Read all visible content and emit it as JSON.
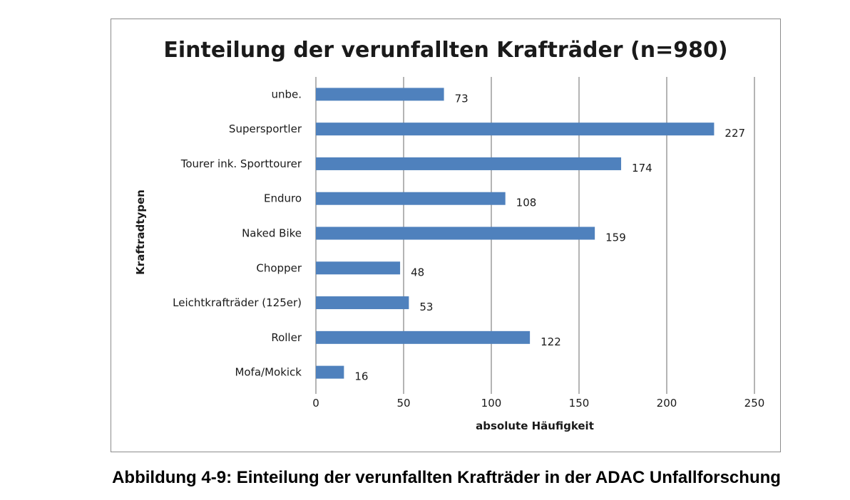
{
  "chart_data": {
    "type": "bar",
    "orientation": "horizontal",
    "title": "Einteilung der verunfallten Krafträder (n=980)",
    "xlabel": "absolute Häufigkeit",
    "ylabel": "Kraftradtypen",
    "categories": [
      "unbe.",
      "Supersportler",
      "Tourer ink. Sporttourer",
      "Enduro",
      "Naked Bike",
      "Chopper",
      "Leichtkrafträder (125er)",
      "Roller",
      "Mofa/Mokick"
    ],
    "values": [
      73,
      227,
      174,
      108,
      159,
      48,
      53,
      122,
      16
    ],
    "xlim": [
      0,
      250
    ],
    "xticks": [
      "0",
      "50",
      "100",
      "150",
      "200",
      "250"
    ],
    "grid": "vertical",
    "legend": "none",
    "bar_color": "#4f81bd",
    "data_labels": true
  },
  "caption": "Abbildung 4-9: Einteilung der verunfallten Krafträder in der ADAC Unfallforschung"
}
